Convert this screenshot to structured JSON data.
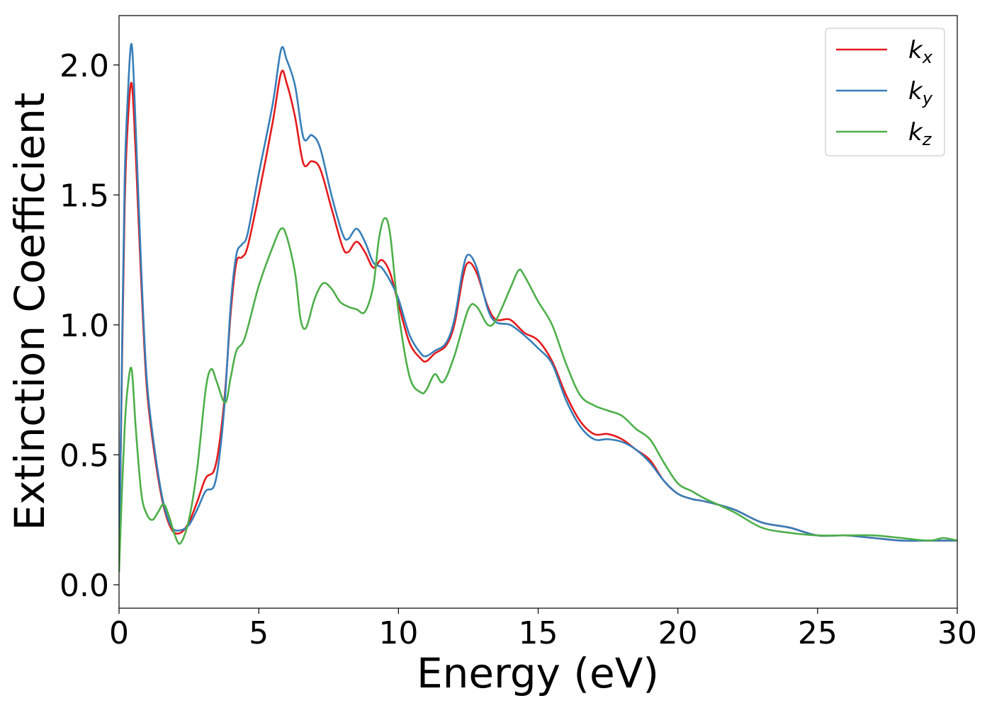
{
  "chart_data": {
    "type": "line",
    "xlabel": "Energy (eV)",
    "ylabel": "Extinction Coefficient",
    "xlim": [
      0,
      30
    ],
    "ylim": [
      -0.09,
      2.19
    ],
    "xticks": [
      0,
      5,
      10,
      15,
      20,
      25,
      30
    ],
    "xtick_labels": [
      "0",
      "5",
      "10",
      "15",
      "20",
      "25",
      "30"
    ],
    "yticks": [
      0.0,
      0.5,
      1.0,
      1.5,
      2.0
    ],
    "ytick_labels": [
      "0.0",
      "0.5",
      "1.0",
      "1.5",
      "2.0"
    ],
    "grid": false,
    "legend_position": "top-right",
    "series": [
      {
        "name": "k",
        "subscript": "x",
        "color": "#e41a1c",
        "x": [
          0.0,
          0.1,
          0.2,
          0.3,
          0.45,
          0.6,
          0.8,
          1.0,
          1.3,
          1.6,
          1.9,
          2.2,
          2.5,
          2.8,
          3.1,
          3.4,
          3.6,
          3.8,
          4.0,
          4.2,
          4.4,
          4.6,
          5.0,
          5.5,
          5.8,
          6.0,
          6.3,
          6.6,
          6.9,
          7.2,
          7.6,
          8.0,
          8.2,
          8.5,
          8.8,
          9.1,
          9.4,
          9.7,
          10.0,
          10.4,
          10.8,
          11.0,
          11.3,
          11.7,
          12.0,
          12.3,
          12.5,
          12.8,
          13.2,
          13.5,
          14.0,
          14.5,
          15.0,
          15.5,
          16.0,
          16.5,
          17.0,
          17.5,
          18.0,
          18.5,
          19.0,
          19.5,
          20.0,
          20.5,
          21.0,
          22.0,
          23.0,
          24.0,
          25.0,
          26.0,
          27.0,
          28.0,
          29.0,
          30.0
        ],
        "values": [
          0.05,
          0.8,
          1.45,
          1.75,
          1.93,
          1.65,
          1.15,
          0.75,
          0.48,
          0.3,
          0.21,
          0.2,
          0.24,
          0.32,
          0.41,
          0.44,
          0.55,
          0.75,
          1.05,
          1.24,
          1.26,
          1.3,
          1.5,
          1.78,
          1.97,
          1.93,
          1.8,
          1.62,
          1.63,
          1.6,
          1.45,
          1.3,
          1.28,
          1.32,
          1.28,
          1.22,
          1.25,
          1.2,
          1.08,
          0.93,
          0.87,
          0.86,
          0.89,
          0.92,
          1.0,
          1.18,
          1.24,
          1.2,
          1.07,
          1.02,
          1.02,
          0.97,
          0.94,
          0.86,
          0.73,
          0.63,
          0.58,
          0.58,
          0.56,
          0.52,
          0.48,
          0.4,
          0.35,
          0.33,
          0.32,
          0.29,
          0.24,
          0.22,
          0.19,
          0.19,
          0.18,
          0.17,
          0.17,
          0.17
        ]
      },
      {
        "name": "k",
        "subscript": "y",
        "color": "#377eb8",
        "x": [
          0.0,
          0.1,
          0.2,
          0.3,
          0.45,
          0.6,
          0.8,
          1.0,
          1.3,
          1.6,
          1.9,
          2.2,
          2.5,
          2.8,
          3.1,
          3.4,
          3.6,
          3.8,
          4.0,
          4.2,
          4.4,
          4.6,
          5.0,
          5.5,
          5.8,
          6.0,
          6.3,
          6.6,
          6.9,
          7.2,
          7.6,
          8.0,
          8.2,
          8.5,
          8.8,
          9.1,
          9.4,
          9.7,
          10.0,
          10.4,
          10.8,
          11.0,
          11.3,
          11.7,
          12.0,
          12.3,
          12.5,
          12.8,
          13.2,
          13.5,
          14.0,
          14.5,
          15.0,
          15.5,
          16.0,
          16.5,
          17.0,
          17.5,
          18.0,
          18.5,
          19.0,
          19.5,
          20.0,
          20.5,
          21.0,
          22.0,
          23.0,
          24.0,
          25.0,
          26.0,
          27.0,
          28.0,
          29.0,
          30.0
        ],
        "values": [
          0.05,
          0.85,
          1.55,
          1.85,
          2.08,
          1.75,
          1.2,
          0.78,
          0.5,
          0.31,
          0.22,
          0.21,
          0.23,
          0.29,
          0.36,
          0.38,
          0.5,
          0.73,
          1.08,
          1.27,
          1.31,
          1.35,
          1.58,
          1.85,
          2.06,
          2.02,
          1.92,
          1.72,
          1.73,
          1.68,
          1.5,
          1.35,
          1.33,
          1.37,
          1.32,
          1.24,
          1.22,
          1.17,
          1.1,
          0.96,
          0.89,
          0.88,
          0.9,
          0.93,
          1.02,
          1.21,
          1.27,
          1.22,
          1.06,
          1.01,
          1.0,
          0.96,
          0.91,
          0.85,
          0.71,
          0.61,
          0.56,
          0.56,
          0.55,
          0.52,
          0.47,
          0.4,
          0.35,
          0.33,
          0.32,
          0.29,
          0.24,
          0.22,
          0.19,
          0.19,
          0.18,
          0.17,
          0.17,
          0.17
        ]
      },
      {
        "name": "k",
        "subscript": "z",
        "color": "#4daf4a",
        "x": [
          0.0,
          0.1,
          0.2,
          0.3,
          0.45,
          0.6,
          0.8,
          1.0,
          1.2,
          1.4,
          1.6,
          1.8,
          2.0,
          2.2,
          2.5,
          2.8,
          3.1,
          3.3,
          3.5,
          3.8,
          4.0,
          4.2,
          4.5,
          5.0,
          5.5,
          5.8,
          6.0,
          6.3,
          6.5,
          6.7,
          7.0,
          7.3,
          7.6,
          7.9,
          8.2,
          8.5,
          8.8,
          9.1,
          9.3,
          9.5,
          9.7,
          10.0,
          10.4,
          10.8,
          11.0,
          11.3,
          11.6,
          12.0,
          12.5,
          12.8,
          13.2,
          13.5,
          14.0,
          14.3,
          14.5,
          15.0,
          15.5,
          16.0,
          16.5,
          17.0,
          17.5,
          18.0,
          18.5,
          19.0,
          19.5,
          20.0,
          20.5,
          21.0,
          22.0,
          23.0,
          24.0,
          25.0,
          26.0,
          27.0,
          28.0,
          29.0,
          29.5,
          30.0
        ],
        "values": [
          0.05,
          0.35,
          0.6,
          0.75,
          0.83,
          0.6,
          0.35,
          0.27,
          0.25,
          0.28,
          0.31,
          0.26,
          0.19,
          0.16,
          0.25,
          0.45,
          0.75,
          0.83,
          0.78,
          0.7,
          0.8,
          0.9,
          0.95,
          1.15,
          1.3,
          1.37,
          1.34,
          1.2,
          1.02,
          0.99,
          1.1,
          1.16,
          1.14,
          1.09,
          1.07,
          1.06,
          1.05,
          1.15,
          1.33,
          1.41,
          1.35,
          1.05,
          0.8,
          0.74,
          0.75,
          0.81,
          0.78,
          0.88,
          1.06,
          1.07,
          1.0,
          1.02,
          1.14,
          1.21,
          1.19,
          1.09,
          1.0,
          0.85,
          0.73,
          0.69,
          0.67,
          0.65,
          0.6,
          0.56,
          0.47,
          0.39,
          0.36,
          0.33,
          0.28,
          0.22,
          0.2,
          0.19,
          0.19,
          0.19,
          0.18,
          0.17,
          0.18,
          0.17
        ]
      }
    ]
  }
}
